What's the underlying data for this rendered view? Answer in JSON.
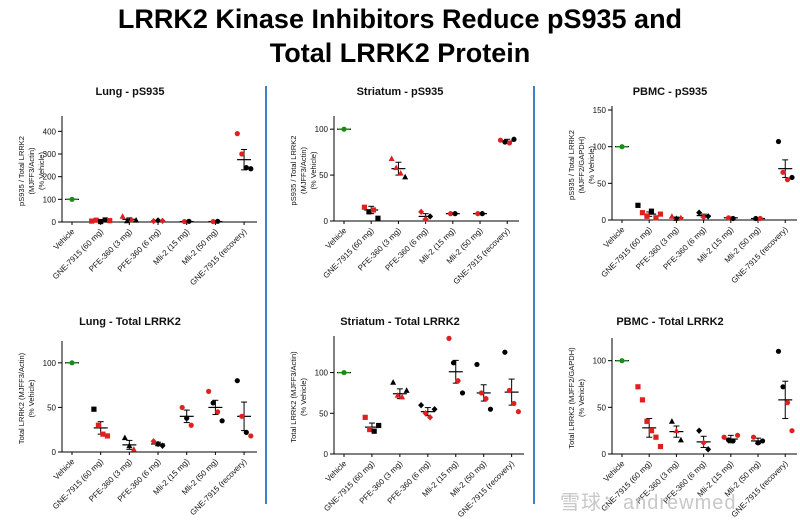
{
  "page": {
    "title_line1": "LRRK2 Kinase Inhibitors Reduce pS935 and",
    "title_line2": "Total LRRK2 Protein"
  },
  "colors": {
    "vehicle": "#1a8a1a",
    "red": "#e02020",
    "black": "#000000",
    "divider": "#3f7fc4"
  },
  "watermark": "雪球：andrewmed",
  "chart_data": [
    {
      "type": "scatter",
      "title": "Lung - pS935",
      "ylabel": [
        "pS935 / Total LRRK2",
        "(MJFF3/Actin)",
        "(% Vehicle)"
      ],
      "ylim": [
        0,
        450
      ],
      "yticks": [
        0,
        100,
        200,
        300,
        400
      ],
      "categories": [
        "Vehicle",
        "GNE-7915 (60 mg)",
        "PFE-360 (3 mg)",
        "PFE-360 (6 mg)",
        "Mli-2 (15 mg)",
        "Mli-2 (50 mg)",
        "GNE-7915 (recovery)"
      ],
      "groups": [
        {
          "mean": 100,
          "err": 0,
          "pts": [
            [
              100,
              "g"
            ]
          ]
        },
        {
          "mean": 6,
          "err": 3,
          "pts": [
            [
              4,
              "r"
            ],
            [
              8,
              "r"
            ],
            [
              2,
              "k"
            ],
            [
              9,
              "k"
            ],
            [
              6,
              "r"
            ]
          ]
        },
        {
          "mean": 12,
          "err": 6,
          "pts": [
            [
              25,
              "r"
            ],
            [
              5,
              "k"
            ],
            [
              10,
              "r"
            ],
            [
              8,
              "k"
            ]
          ]
        },
        {
          "mean": 5,
          "err": 2,
          "pts": [
            [
              4,
              "r"
            ],
            [
              7,
              "k"
            ],
            [
              5,
              "r"
            ]
          ]
        },
        {
          "mean": 2,
          "err": 1,
          "pts": [
            [
              2,
              "r"
            ],
            [
              3,
              "k"
            ]
          ]
        },
        {
          "mean": 2,
          "err": 1,
          "pts": [
            [
              2,
              "r"
            ],
            [
              3,
              "k"
            ]
          ]
        },
        {
          "mean": 275,
          "err": 45,
          "pts": [
            [
              390,
              "r"
            ],
            [
              300,
              "r"
            ],
            [
              240,
              "k"
            ],
            [
              235,
              "k"
            ]
          ]
        }
      ]
    },
    {
      "type": "scatter",
      "title": "Striatum - pS935",
      "ylabel": [
        "pS935 / Total LRRK2",
        "(MJFF3/Actin)",
        "(% Vehicle)"
      ],
      "ylim": [
        0,
        110
      ],
      "yticks": [
        0,
        50,
        100
      ],
      "categories": [
        "Vehicle",
        "GNE-7915 (60 mg)",
        "PFE-360 (3 mg)",
        "PFE-360 (6 mg)",
        "Mli-2 (15 mg)",
        "Mli-2 (50 mg)",
        "GNE-7915 (recovery)"
      ],
      "groups": [
        {
          "mean": 100,
          "err": 0,
          "pts": [
            [
              100,
              "g"
            ]
          ]
        },
        {
          "mean": 12,
          "err": 4,
          "pts": [
            [
              15,
              "r"
            ],
            [
              10,
              "k"
            ],
            [
              12,
              "r"
            ],
            [
              3,
              "k"
            ]
          ]
        },
        {
          "mean": 57,
          "err": 7,
          "pts": [
            [
              68,
              "r"
            ],
            [
              58,
              "r"
            ],
            [
              52,
              "r"
            ],
            [
              48,
              "k"
            ]
          ]
        },
        {
          "mean": 5,
          "err": 3,
          "pts": [
            [
              10,
              "r"
            ],
            [
              2,
              "r"
            ],
            [
              5,
              "k"
            ]
          ]
        },
        {
          "mean": 8,
          "err": 1,
          "pts": [
            [
              8,
              "r"
            ],
            [
              8,
              "k"
            ]
          ]
        },
        {
          "mean": 8,
          "err": 1,
          "pts": [
            [
              8,
              "r"
            ],
            [
              8,
              "k"
            ]
          ]
        },
        {
          "mean": 87,
          "err": 2,
          "pts": [
            [
              88,
              "r"
            ],
            [
              86,
              "k"
            ],
            [
              85,
              "r"
            ],
            [
              89,
              "k"
            ]
          ]
        }
      ]
    },
    {
      "type": "scatter",
      "title": "PBMC - pS935",
      "ylabel": [
        "pS935 / Total LRRK2",
        "(MJFF2/GAPDH)",
        "(% Vehicle)"
      ],
      "ylim": [
        0,
        150
      ],
      "yticks": [
        0,
        50,
        100,
        150
      ],
      "categories": [
        "Vehicle",
        "GNE-7915 (60 mg)",
        "PFE-360 (3 mg)",
        "PFE-360 (6 mg)",
        "Mli-2 (15 mg)",
        "Mli-2 (50 mg)",
        "GNE-7915 (recovery)"
      ],
      "groups": [
        {
          "mean": 100,
          "err": 0,
          "pts": [
            [
              100,
              "g"
            ]
          ]
        },
        {
          "mean": 8,
          "err": 3,
          "pts": [
            [
              20,
              "k"
            ],
            [
              10,
              "r"
            ],
            [
              5,
              "r"
            ],
            [
              12,
              "k"
            ],
            [
              3,
              "r"
            ],
            [
              8,
              "r"
            ]
          ]
        },
        {
          "mean": 3,
          "err": 1,
          "pts": [
            [
              5,
              "r"
            ],
            [
              2,
              "k"
            ],
            [
              3,
              "r"
            ]
          ]
        },
        {
          "mean": 6,
          "err": 2,
          "pts": [
            [
              10,
              "k"
            ],
            [
              4,
              "r"
            ],
            [
              5,
              "k"
            ]
          ]
        },
        {
          "mean": 3,
          "err": 1,
          "pts": [
            [
              3,
              "r"
            ],
            [
              2,
              "k"
            ]
          ]
        },
        {
          "mean": 2,
          "err": 0,
          "pts": [
            [
              2,
              "k"
            ],
            [
              2,
              "r"
            ]
          ]
        },
        {
          "mean": 70,
          "err": 12,
          "pts": [
            [
              107,
              "k"
            ],
            [
              65,
              "r"
            ],
            [
              55,
              "r"
            ],
            [
              58,
              "k"
            ]
          ]
        }
      ]
    },
    {
      "type": "scatter",
      "title": "Lung - Total LRRK2",
      "ylabel": [
        "Total LRRK2 (MJFF3/Actin)",
        "(% Vehicle)"
      ],
      "ylim": [
        0,
        120
      ],
      "yticks": [
        0,
        50,
        100
      ],
      "categories": [
        "Vehicle",
        "GNE-7915 (60 mg)",
        "PFE-360 (3 mg)",
        "PFE-360 (6 mg)",
        "Mli-2 (15 mg)",
        "Mli-2 (50 mg)",
        "GNE-7915 (recovery)"
      ],
      "groups": [
        {
          "mean": 100,
          "err": 0,
          "pts": [
            [
              100,
              "g"
            ]
          ]
        },
        {
          "mean": 27,
          "err": 7,
          "pts": [
            [
              48,
              "k"
            ],
            [
              30,
              "r"
            ],
            [
              20,
              "r"
            ],
            [
              18,
              "r"
            ]
          ]
        },
        {
          "mean": 8,
          "err": 5,
          "pts": [
            [
              16,
              "k"
            ],
            [
              7,
              "k"
            ],
            [
              3,
              "r"
            ]
          ]
        },
        {
          "mean": 9,
          "err": 2,
          "pts": [
            [
              12,
              "r"
            ],
            [
              9,
              "k"
            ],
            [
              7,
              "k"
            ]
          ]
        },
        {
          "mean": 40,
          "err": 7,
          "pts": [
            [
              50,
              "r"
            ],
            [
              38,
              "k"
            ],
            [
              30,
              "r"
            ]
          ]
        },
        {
          "mean": 50,
          "err": 8,
          "pts": [
            [
              68,
              "r"
            ],
            [
              55,
              "k"
            ],
            [
              45,
              "r"
            ],
            [
              35,
              "k"
            ]
          ]
        },
        {
          "mean": 40,
          "err": 16,
          "pts": [
            [
              80,
              "k"
            ],
            [
              40,
              "r"
            ],
            [
              22,
              "k"
            ],
            [
              18,
              "r"
            ]
          ]
        }
      ]
    },
    {
      "type": "scatter",
      "title": "Striatum - Total LRRK2",
      "ylabel": [
        "Total LRRK2 (MJFF3/Actin)",
        "(% Vehicle)"
      ],
      "ylim": [
        0,
        140
      ],
      "yticks": [
        0,
        50,
        100
      ],
      "categories": [
        "Vehicle",
        "GNE-7915 (60 mg)",
        "PFE-360 (3 mg)",
        "PFE-360 (6 mg)",
        "Mli-2 (15 mg)",
        "Mli-2 (50 mg)",
        "GNE-7915 (recovery)"
      ],
      "groups": [
        {
          "mean": 100,
          "err": 0,
          "pts": [
            [
              100,
              "g"
            ]
          ]
        },
        {
          "mean": 33,
          "err": 5,
          "pts": [
            [
              45,
              "r"
            ],
            [
              30,
              "r"
            ],
            [
              28,
              "k"
            ],
            [
              35,
              "k"
            ]
          ]
        },
        {
          "mean": 74,
          "err": 6,
          "pts": [
            [
              88,
              "k"
            ],
            [
              72,
              "r"
            ],
            [
              70,
              "r"
            ],
            [
              78,
              "k"
            ]
          ]
        },
        {
          "mean": 52,
          "err": 5,
          "pts": [
            [
              60,
              "k"
            ],
            [
              50,
              "r"
            ],
            [
              45,
              "r"
            ],
            [
              55,
              "k"
            ]
          ]
        },
        {
          "mean": 101,
          "err": 14,
          "pts": [
            [
              142,
              "r"
            ],
            [
              112,
              "k"
            ],
            [
              90,
              "r"
            ],
            [
              75,
              "k"
            ]
          ]
        },
        {
          "mean": 75,
          "err": 10,
          "pts": [
            [
              110,
              "k"
            ],
            [
              75,
              "r"
            ],
            [
              68,
              "r"
            ],
            [
              55,
              "k"
            ]
          ]
        },
        {
          "mean": 76,
          "err": 16,
          "pts": [
            [
              125,
              "k"
            ],
            [
              78,
              "r"
            ],
            [
              62,
              "r"
            ],
            [
              52,
              "r"
            ]
          ]
        }
      ]
    },
    {
      "type": "scatter",
      "title": "PBMC - Total LRRK2",
      "ylabel": [
        "Total LRRK2 (MJFF2/GAPDH)",
        "(% Vehicle)"
      ],
      "ylim": [
        0,
        120
      ],
      "yticks": [
        0,
        50,
        100
      ],
      "categories": [
        "Vehicle",
        "GNE-7915 (60 mg)",
        "PFE-360 (3 mg)",
        "PFE-360 (6 mg)",
        "Mli-2 (15 mg)",
        "Mli-2 (50 mg)",
        "GNE-7915 (recovery)"
      ],
      "groups": [
        {
          "mean": 100,
          "err": 0,
          "pts": [
            [
              100,
              "g"
            ]
          ]
        },
        {
          "mean": 28,
          "err": 10,
          "pts": [
            [
              72,
              "r"
            ],
            [
              58,
              "r"
            ],
            [
              35,
              "r"
            ],
            [
              25,
              "r"
            ],
            [
              18,
              "r"
            ],
            [
              8,
              "r"
            ]
          ]
        },
        {
          "mean": 24,
          "err": 6,
          "pts": [
            [
              35,
              "k"
            ],
            [
              25,
              "r"
            ],
            [
              15,
              "k"
            ]
          ]
        },
        {
          "mean": 13,
          "err": 6,
          "pts": [
            [
              25,
              "k"
            ],
            [
              12,
              "r"
            ],
            [
              5,
              "k"
            ]
          ]
        },
        {
          "mean": 16,
          "err": 4,
          "pts": [
            [
              18,
              "r"
            ],
            [
              15,
              "k"
            ],
            [
              14,
              "k"
            ],
            [
              20,
              "r"
            ]
          ]
        },
        {
          "mean": 14,
          "err": 3,
          "pts": [
            [
              18,
              "r"
            ],
            [
              12,
              "k"
            ],
            [
              14,
              "k"
            ]
          ]
        },
        {
          "mean": 58,
          "err": 20,
          "pts": [
            [
              110,
              "k"
            ],
            [
              72,
              "k"
            ],
            [
              55,
              "r"
            ],
            [
              25,
              "r"
            ]
          ]
        }
      ]
    }
  ]
}
